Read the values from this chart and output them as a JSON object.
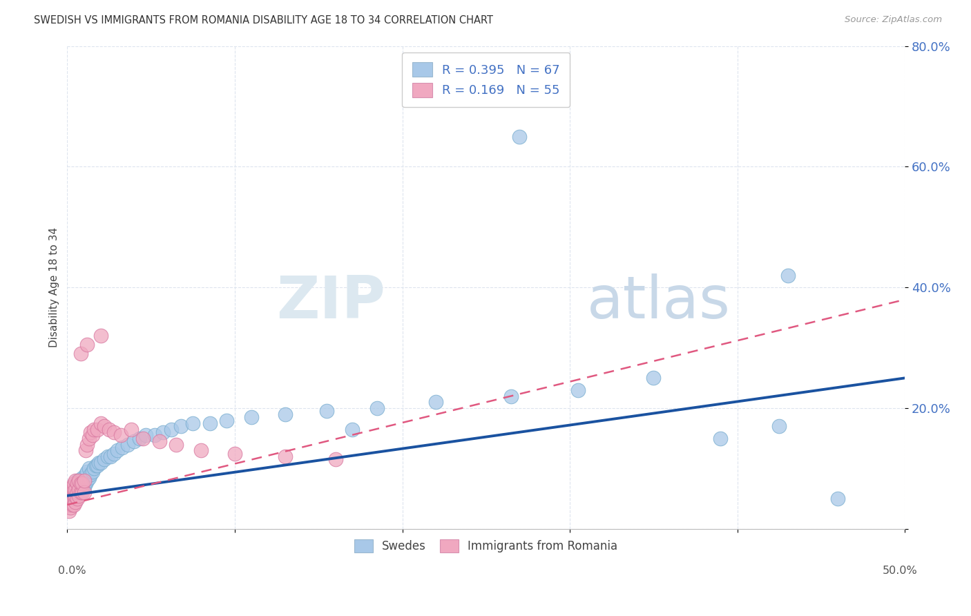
{
  "title": "SWEDISH VS IMMIGRANTS FROM ROMANIA DISABILITY AGE 18 TO 34 CORRELATION CHART",
  "source": "Source: ZipAtlas.com",
  "ylabel": "Disability Age 18 to 34",
  "legend_swedes": "Swedes",
  "legend_romania": "Immigrants from Romania",
  "r_swedes": 0.395,
  "n_swedes": 67,
  "r_romania": 0.169,
  "n_romania": 55,
  "swedes_color": "#a8c8e8",
  "swedes_line_color": "#1a52a0",
  "romania_color": "#f0a8c0",
  "romania_line_color": "#e05880",
  "background_color": "#ffffff",
  "grid_color": "#dde4ee",
  "swedes_x": [
    0.001,
    0.001,
    0.002,
    0.002,
    0.003,
    0.003,
    0.003,
    0.004,
    0.004,
    0.005,
    0.005,
    0.005,
    0.006,
    0.006,
    0.006,
    0.007,
    0.007,
    0.008,
    0.008,
    0.009,
    0.009,
    0.01,
    0.01,
    0.011,
    0.011,
    0.012,
    0.012,
    0.013,
    0.013,
    0.014,
    0.015,
    0.016,
    0.017,
    0.018,
    0.019,
    0.02,
    0.022,
    0.024,
    0.026,
    0.028,
    0.03,
    0.033,
    0.036,
    0.04,
    0.043,
    0.047,
    0.052,
    0.057,
    0.062,
    0.068,
    0.075,
    0.085,
    0.095,
    0.11,
    0.13,
    0.155,
    0.185,
    0.22,
    0.265,
    0.305,
    0.35,
    0.27,
    0.425,
    0.43,
    0.46,
    0.39,
    0.17
  ],
  "swedes_y": [
    0.04,
    0.055,
    0.045,
    0.06,
    0.05,
    0.06,
    0.07,
    0.05,
    0.065,
    0.055,
    0.065,
    0.075,
    0.055,
    0.065,
    0.08,
    0.06,
    0.075,
    0.065,
    0.08,
    0.07,
    0.085,
    0.07,
    0.085,
    0.075,
    0.09,
    0.08,
    0.095,
    0.085,
    0.1,
    0.09,
    0.095,
    0.1,
    0.105,
    0.105,
    0.11,
    0.11,
    0.115,
    0.12,
    0.12,
    0.125,
    0.13,
    0.135,
    0.14,
    0.145,
    0.15,
    0.155,
    0.155,
    0.16,
    0.165,
    0.17,
    0.175,
    0.175,
    0.18,
    0.185,
    0.19,
    0.195,
    0.2,
    0.21,
    0.22,
    0.23,
    0.25,
    0.65,
    0.17,
    0.42,
    0.05,
    0.15,
    0.165
  ],
  "romania_x": [
    0.001,
    0.001,
    0.001,
    0.001,
    0.002,
    0.002,
    0.002,
    0.002,
    0.003,
    0.003,
    0.003,
    0.003,
    0.004,
    0.004,
    0.004,
    0.004,
    0.005,
    0.005,
    0.005,
    0.005,
    0.006,
    0.006,
    0.006,
    0.007,
    0.007,
    0.007,
    0.008,
    0.008,
    0.009,
    0.009,
    0.01,
    0.01,
    0.011,
    0.012,
    0.013,
    0.014,
    0.015,
    0.016,
    0.018,
    0.02,
    0.022,
    0.025,
    0.028,
    0.032,
    0.038,
    0.045,
    0.055,
    0.065,
    0.08,
    0.1,
    0.13,
    0.16,
    0.008,
    0.012,
    0.02
  ],
  "romania_y": [
    0.03,
    0.04,
    0.05,
    0.06,
    0.035,
    0.045,
    0.055,
    0.065,
    0.04,
    0.05,
    0.06,
    0.07,
    0.04,
    0.055,
    0.065,
    0.075,
    0.045,
    0.055,
    0.065,
    0.08,
    0.05,
    0.06,
    0.075,
    0.055,
    0.065,
    0.08,
    0.06,
    0.075,
    0.06,
    0.075,
    0.06,
    0.08,
    0.13,
    0.14,
    0.15,
    0.16,
    0.155,
    0.165,
    0.165,
    0.175,
    0.17,
    0.165,
    0.16,
    0.155,
    0.165,
    0.15,
    0.145,
    0.14,
    0.13,
    0.125,
    0.12,
    0.115,
    0.29,
    0.305,
    0.32
  ],
  "ylim": [
    0.0,
    0.8
  ],
  "xlim": [
    0.0,
    0.5
  ],
  "yticks": [
    0.0,
    0.2,
    0.4,
    0.6,
    0.8
  ],
  "ytick_labels": [
    "",
    "20.0%",
    "40.0%",
    "60.0%",
    "80.0%"
  ],
  "swedes_line_x0": 0.0,
  "swedes_line_y0": 0.055,
  "swedes_line_x1": 0.5,
  "swedes_line_y1": 0.25,
  "romania_line_x0": 0.0,
  "romania_line_y0": 0.04,
  "romania_line_x1": 0.5,
  "romania_line_y1": 0.38
}
